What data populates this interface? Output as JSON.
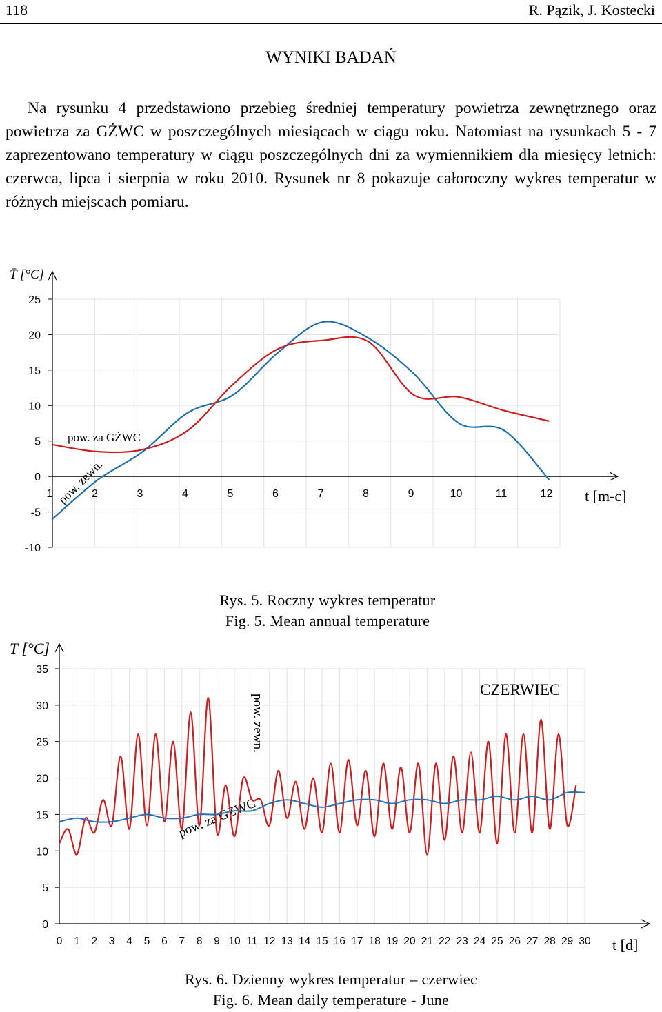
{
  "header": {
    "page_number": "118",
    "authors": "R. Pązik, J. Kostecki"
  },
  "section_heading": "WYNIKI BADAŃ",
  "paragraph": "Na rysunku 4 przedstawiono przebieg średniej temperatury powietrza zewnętrznego oraz powietrza za GŻWC w poszczególnych miesiącach w ciągu roku. Natomiast na rysunkach 5 - 7 zaprezentowano temperatury w ciągu poszczególnych dni za wymiennikiem dla miesięcy letnich: czerwca, lipca i sierpnia w roku 2010. Rysunek nr 8 pokazuje całoroczny wykres temperatur w różnych miejscach pomiaru.",
  "figures": {
    "fig5": {
      "caption_pl": "Rys. 5. Roczny wykres temperatur",
      "caption_en": "Fig. 5. Mean annual temperature"
    },
    "fig6": {
      "caption_pl": "Rys. 6. Dzienny wykres temperatur – czerwiec",
      "caption_en": "Fig. 6. Mean daily temperature - June"
    }
  },
  "chart_data": [
    {
      "type": "line",
      "ylabel": "T̄ [°C]",
      "xlabel": "t [m-c]",
      "x": [
        1,
        2,
        3,
        4,
        5,
        6,
        7,
        8,
        9,
        10,
        11,
        12
      ],
      "yticks": [
        "25",
        "20",
        "15",
        "10",
        "5",
        "0",
        "-5",
        "-10"
      ],
      "xticks": [
        "1",
        "2",
        "3",
        "4",
        "5",
        "6",
        "7",
        "8",
        "9",
        "10",
        "11",
        "12"
      ],
      "ylim": [
        -10,
        25
      ],
      "grid": true,
      "series": [
        {
          "name": "pow. zewn.",
          "color": "#1f6fb0",
          "values": [
            -6,
            -0.5,
            3.5,
            9,
            11.5,
            17.5,
            21.8,
            19.5,
            14.5,
            7.5,
            6.5,
            -0.5
          ]
        },
        {
          "name": "pow. za GŻWC",
          "color": "#cc1f1f",
          "values": [
            4.5,
            3.5,
            3.8,
            6.5,
            13,
            18,
            19.2,
            19.0,
            11.5,
            11.2,
            9.3,
            7.8
          ]
        }
      ]
    },
    {
      "type": "line",
      "ylabel": "T [°C]",
      "xlabel": "t [d]",
      "title": "CZERWIEC",
      "xticks": [
        "0",
        "1",
        "2",
        "3",
        "4",
        "5",
        "6",
        "7",
        "8",
        "9",
        "10",
        "11",
        "12",
        "13",
        "14",
        "15",
        "16",
        "17",
        "18",
        "19",
        "20",
        "21",
        "22",
        "23",
        "24",
        "25",
        "26",
        "27",
        "28",
        "29",
        "30"
      ],
      "yticks": [
        "35",
        "30",
        "25",
        "20",
        "15",
        "10",
        "5",
        "0"
      ],
      "ylim": [
        0,
        35
      ],
      "xlim": [
        0,
        30
      ],
      "grid": true,
      "series": [
        {
          "name": "pow. zewn.",
          "color": "#cc1f1f",
          "minima": [
            11,
            9.5,
            12.5,
            13.5,
            13,
            13.5,
            14,
            13,
            13.5,
            12.5,
            12,
            17,
            13.5,
            14.5,
            13,
            12.5,
            12.5,
            13.5,
            12,
            13,
            12.5,
            9.5,
            11.5,
            12.5,
            12.5,
            11,
            12.5,
            12.5,
            13,
            13.5
          ],
          "maxima": [
            13,
            14.5,
            17,
            23,
            26,
            26,
            25,
            29,
            31,
            19,
            20,
            17,
            21,
            19.5,
            20,
            22,
            22.5,
            21,
            22,
            21.5,
            22,
            22,
            23,
            23.5,
            25,
            26,
            26,
            28,
            26,
            19
          ]
        },
        {
          "name": "pow. za GŻWC",
          "color": "#2a72b5",
          "values": [
            14,
            14.5,
            14,
            14,
            14.5,
            15,
            14.5,
            14.5,
            15,
            15,
            15.5,
            15.5,
            16.5,
            17,
            16.5,
            16,
            16.5,
            17,
            17,
            16.5,
            17,
            17,
            16.5,
            17,
            17,
            17.5,
            17,
            17.5,
            17,
            18,
            18
          ]
        }
      ]
    }
  ],
  "annotations": {
    "fig5_label_gzwc": "pow. za GŻWC",
    "fig5_label_zewn": "pow. zewn.",
    "fig6_label_zewn": "pow. zewn.",
    "fig6_label_gzwc": "pow. za GŻWC"
  }
}
